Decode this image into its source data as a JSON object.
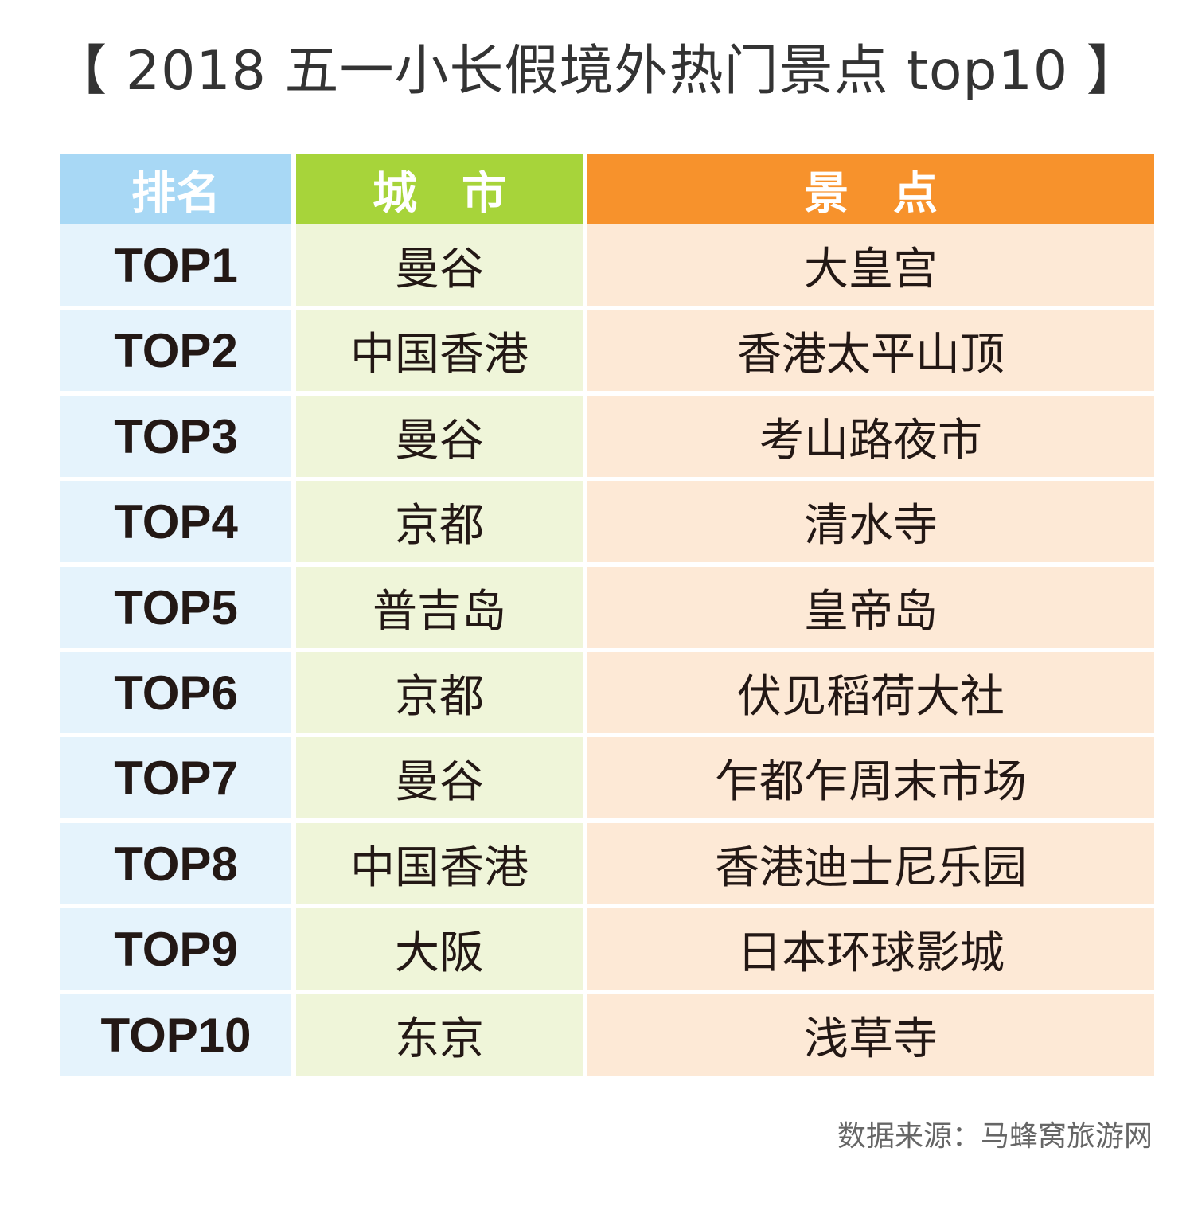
{
  "title": "【 2018 五一小长假境外热门景点 top10 】",
  "chart_data": {
    "type": "table",
    "title": "【 2018 五一小长假境外热门景点 top10 】",
    "columns": [
      "排名",
      "城　市",
      "景　点"
    ],
    "rows": [
      {
        "rank": "TOP1",
        "city": "曼谷",
        "spot": "大皇宫"
      },
      {
        "rank": "TOP2",
        "city": "中国香港",
        "spot": "香港太平山顶"
      },
      {
        "rank": "TOP3",
        "city": "曼谷",
        "spot": "考山路夜市"
      },
      {
        "rank": "TOP4",
        "city": "京都",
        "spot": "清水寺"
      },
      {
        "rank": "TOP5",
        "city": "普吉岛",
        "spot": "皇帝岛"
      },
      {
        "rank": "TOP6",
        "city": "京都",
        "spot": "伏见稻荷大社"
      },
      {
        "rank": "TOP7",
        "city": "曼谷",
        "spot": "乍都乍周末市场"
      },
      {
        "rank": "TOP8",
        "city": "中国香港",
        "spot": "香港迪士尼乐园"
      },
      {
        "rank": "TOP9",
        "city": "大阪",
        "spot": "日本环球影城"
      },
      {
        "rank": "TOP10",
        "city": "东京",
        "spot": "浅草寺"
      }
    ]
  },
  "source": "数据来源：马蜂窝旅游网",
  "colors": {
    "rank_header": "#a8d8f5",
    "city_header": "#a7d43a",
    "spot_header": "#f7922c",
    "rank_cell": "#e5f3fc",
    "city_cell": "#eff5d9",
    "spot_cell": "#fde9d6"
  }
}
